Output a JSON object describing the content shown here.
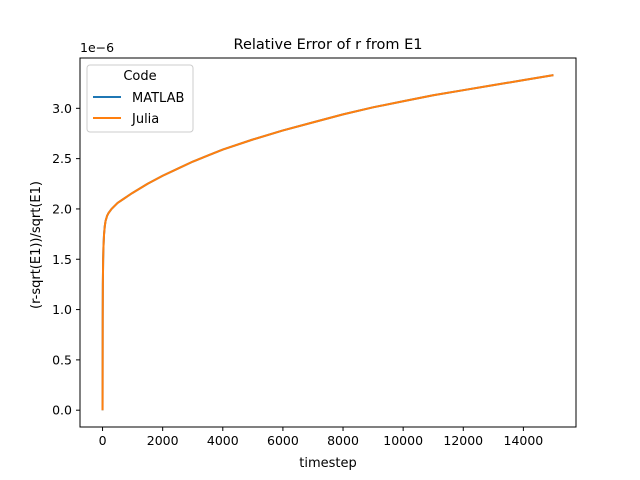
{
  "chart_data": {
    "type": "line",
    "title": "Relative Error of r from E1",
    "xlabel": "timestep",
    "ylabel": "(r-sqrt(E1))/sqrt(E1)",
    "y_scale_label": "1e−6",
    "xlim": [
      -750,
      15750
    ],
    "ylim": [
      -0.167,
      3.5
    ],
    "x_ticks": [
      0,
      2000,
      4000,
      6000,
      8000,
      10000,
      12000,
      14000
    ],
    "x_tick_labels": [
      "0",
      "2000",
      "4000",
      "6000",
      "8000",
      "10000",
      "12000",
      "14000"
    ],
    "y_ticks": [
      0.0,
      0.5,
      1.0,
      1.5,
      2.0,
      2.5,
      3.0
    ],
    "y_tick_labels": [
      "0.0",
      "0.5",
      "1.0",
      "1.5",
      "2.0",
      "2.5",
      "3.0"
    ],
    "grid": false,
    "legend": {
      "title": "Code",
      "placement": "top-left"
    },
    "series": [
      {
        "name": "MATLAB",
        "color": "#1f77b4",
        "x": [
          0,
          5,
          10,
          20,
          30,
          50,
          75,
          100,
          150,
          200,
          300,
          400,
          500,
          700,
          1000,
          1500,
          2000,
          2500,
          3000,
          3500,
          4000,
          5000,
          6000,
          7000,
          8000,
          9000,
          10000,
          11000,
          12000,
          13000,
          14000,
          15000
        ],
        "values": [
          0.0,
          0.9,
          1.25,
          1.5,
          1.62,
          1.75,
          1.83,
          1.88,
          1.93,
          1.96,
          2.0,
          2.03,
          2.06,
          2.1,
          2.16,
          2.25,
          2.33,
          2.4,
          2.47,
          2.53,
          2.59,
          2.69,
          2.78,
          2.86,
          2.94,
          3.01,
          3.07,
          3.13,
          3.18,
          3.23,
          3.28,
          3.33
        ]
      },
      {
        "name": "Julia",
        "color": "#ff7f0e",
        "x": [
          0,
          5,
          10,
          20,
          30,
          50,
          75,
          100,
          150,
          200,
          300,
          400,
          500,
          700,
          1000,
          1500,
          2000,
          2500,
          3000,
          3500,
          4000,
          5000,
          6000,
          7000,
          8000,
          9000,
          10000,
          11000,
          12000,
          13000,
          14000,
          15000
        ],
        "values": [
          0.0,
          0.9,
          1.25,
          1.5,
          1.62,
          1.75,
          1.83,
          1.88,
          1.93,
          1.96,
          2.0,
          2.03,
          2.06,
          2.1,
          2.16,
          2.25,
          2.33,
          2.4,
          2.47,
          2.53,
          2.59,
          2.69,
          2.78,
          2.86,
          2.94,
          3.01,
          3.07,
          3.13,
          3.18,
          3.23,
          3.28,
          3.33
        ]
      }
    ]
  }
}
